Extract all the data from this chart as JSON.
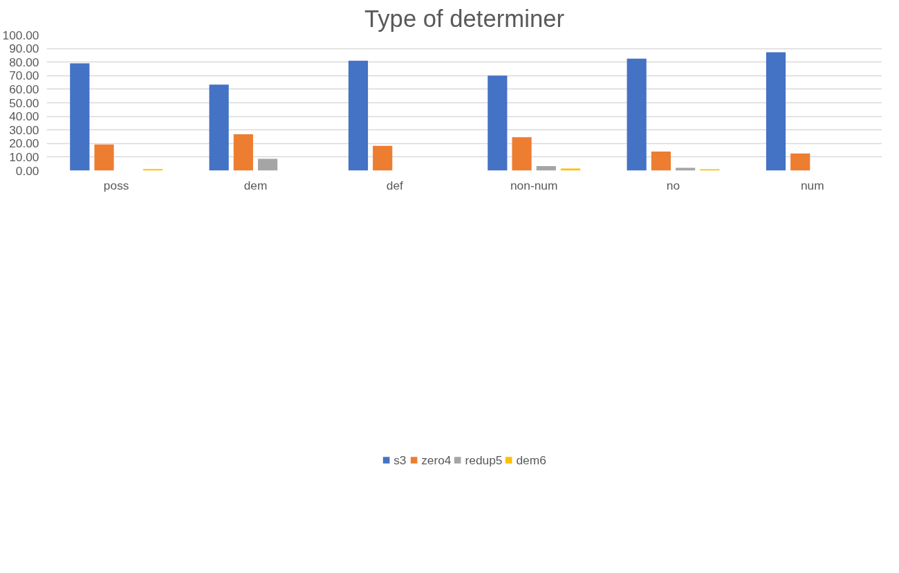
{
  "chart_data": {
    "type": "bar",
    "title": "Type of determiner",
    "categories": [
      "poss",
      "dem",
      "def",
      "non-num",
      "no",
      "num"
    ],
    "series": [
      {
        "name": "s3",
        "color": "#4472c4",
        "values": [
          79.1,
          63.4,
          81.0,
          70.0,
          82.5,
          87.3
        ]
      },
      {
        "name": "zero4",
        "color": "#ed7d31",
        "values": [
          19.2,
          26.8,
          18.2,
          24.6,
          14.0,
          12.6
        ]
      },
      {
        "name": "redup5",
        "color": "#a5a5a5",
        "values": [
          0,
          8.7,
          0,
          3.3,
          2.1,
          0
        ]
      },
      {
        "name": "dem6",
        "color": "#ffc000",
        "values": [
          1.1,
          0,
          0,
          1.5,
          1.0,
          0
        ]
      }
    ],
    "ylim": [
      0,
      100
    ],
    "yticks": [
      {
        "value": 0,
        "label": "0.00"
      },
      {
        "value": 10,
        "label": "10.00"
      },
      {
        "value": 20,
        "label": "20.00"
      },
      {
        "value": 30,
        "label": "30.00"
      },
      {
        "value": 40,
        "label": "40.00"
      },
      {
        "value": 50,
        "label": "50.00"
      },
      {
        "value": 60,
        "label": "60.00"
      },
      {
        "value": 70,
        "label": "70.00"
      },
      {
        "value": 80,
        "label": "80.00"
      },
      {
        "value": 90,
        "label": "90.00"
      },
      {
        "value": 100,
        "label": "100.00"
      }
    ],
    "grid": "y",
    "legend": "bottom"
  }
}
